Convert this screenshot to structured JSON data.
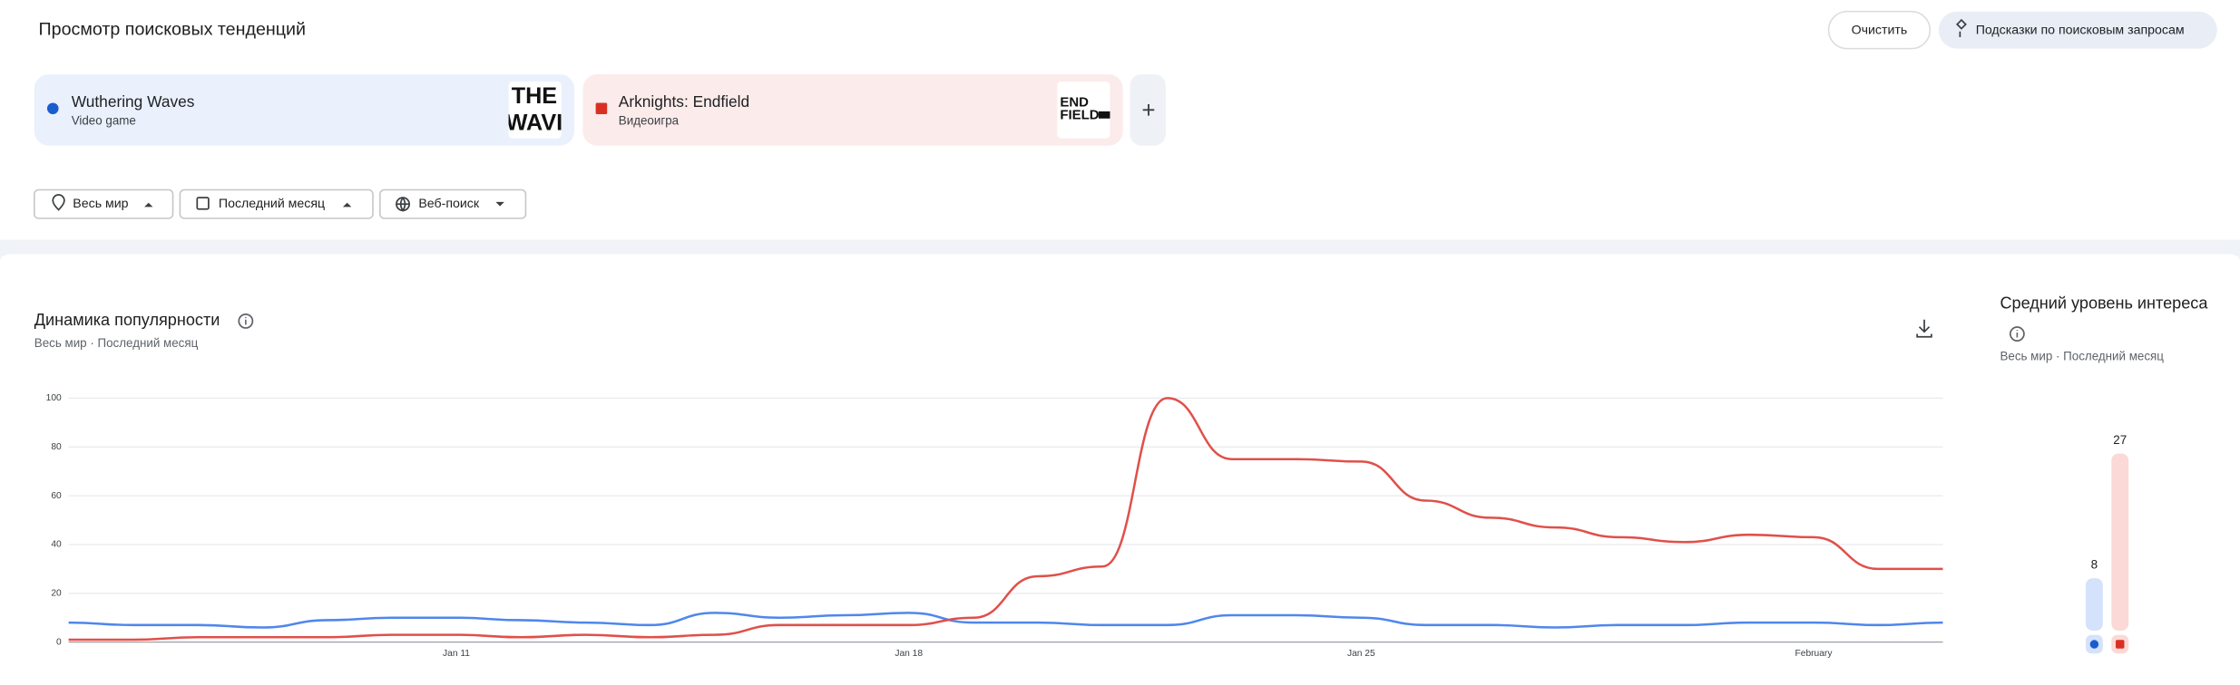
{
  "header": {
    "title": "Просмотр поисковых тенденций",
    "clear_button": "Очистить",
    "suggestions_button": "Подсказки по поисковым запросам"
  },
  "terms": [
    {
      "name": "Wuthering Waves",
      "type": "Video game",
      "color": "#1a5dd0",
      "thumbnail": [
        "THE",
        "WAVI"
      ]
    },
    {
      "name": "Arknights: Endfield",
      "type": "Видеоигра",
      "color": "#d93025",
      "thumbnail": [
        "END",
        "FIELD"
      ]
    }
  ],
  "filters": [
    "Весь мир",
    "Последний месяц",
    "Веб-поиск"
  ],
  "chart_data": [
    {
      "type": "line",
      "title": "Динамика популярности",
      "subtitle": "Весь мир · Последний месяц",
      "categories": [
        null,
        null,
        null,
        null,
        null,
        null,
        "Jan 11",
        null,
        null,
        null,
        null,
        null,
        null,
        "Jan 18",
        null,
        null,
        null,
        null,
        null,
        null,
        "Jan 25",
        null,
        null,
        null,
        null,
        null,
        null,
        "February",
        null,
        null
      ],
      "series": [
        {
          "color": "#4f87ec",
          "values": [
            8,
            7,
            7,
            6,
            9,
            10,
            10,
            9,
            8,
            7,
            12,
            10,
            11,
            12,
            8,
            8,
            7,
            7,
            11,
            11,
            10,
            7,
            7,
            6,
            7,
            7,
            8,
            8,
            7,
            8
          ]
        },
        {
          "color": "#e0504a",
          "values": [
            1,
            1,
            2,
            2,
            2,
            3,
            3,
            2,
            3,
            2,
            3,
            7,
            7,
            7,
            10,
            27,
            31,
            100,
            75,
            75,
            74,
            58,
            51,
            47,
            43,
            41,
            44,
            43,
            30,
            30
          ]
        }
      ],
      "ylim": [
        0,
        100
      ],
      "yticks": [
        0,
        20,
        40,
        60,
        80,
        100
      ],
      "grid": true
    },
    {
      "type": "bar",
      "title": "Средний уровень интереса",
      "subtitle": "Весь мир · Последний месяц",
      "values": [
        8,
        27
      ],
      "colors": [
        "#d4e2fb",
        "#fbd9d6"
      ]
    }
  ]
}
